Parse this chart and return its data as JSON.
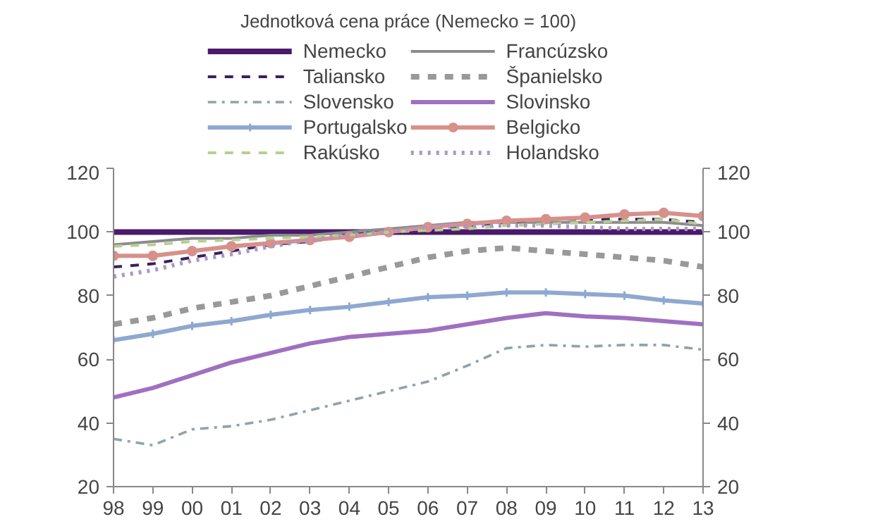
{
  "chart_data": {
    "type": "line",
    "title": "Jednotková cena práce (Nemecko = 100)",
    "x": [
      1998,
      1999,
      2000,
      2001,
      2002,
      2003,
      2004,
      2005,
      2006,
      2007,
      2008,
      2009,
      2010,
      2011,
      2012,
      2013
    ],
    "xlim": [
      1998,
      2013
    ],
    "xticks": [
      {
        "value": 1998,
        "label": "98"
      },
      {
        "value": 1999,
        "label": "99"
      },
      {
        "value": 2000,
        "label": "00"
      },
      {
        "value": 2001,
        "label": "01"
      },
      {
        "value": 2002,
        "label": "02"
      },
      {
        "value": 2003,
        "label": "03"
      },
      {
        "value": 2004,
        "label": "04"
      },
      {
        "value": 2005,
        "label": "05"
      },
      {
        "value": 2006,
        "label": "06"
      },
      {
        "value": 2007,
        "label": "07"
      },
      {
        "value": 2008,
        "label": "08"
      },
      {
        "value": 2009,
        "label": "09"
      },
      {
        "value": 2010,
        "label": "10"
      },
      {
        "value": 2011,
        "label": "11"
      },
      {
        "value": 2012,
        "label": "12"
      },
      {
        "value": 2013,
        "label": "13"
      }
    ],
    "ylim": [
      20,
      120
    ],
    "yticks": [
      20,
      40,
      60,
      80,
      100,
      120
    ],
    "y2lim": [
      20,
      120
    ],
    "y2ticks": [
      20,
      40,
      60,
      80,
      100,
      120
    ],
    "grid": false,
    "legend": "top",
    "series": [
      {
        "name": "Nemecko",
        "color": "#4b1a6b",
        "line_style": "solid",
        "marker": "none",
        "values": [
          100,
          100,
          100,
          100,
          100,
          100,
          100,
          100,
          100,
          100,
          100,
          100,
          100,
          100,
          100,
          100
        ]
      },
      {
        "name": "Francúzsko",
        "color": "#8c8c8c",
        "line_style": "solid",
        "marker": "none",
        "values": [
          96,
          97,
          98,
          98,
          99,
          99,
          100,
          101,
          102,
          103,
          103,
          103,
          103,
          103,
          103,
          102
        ]
      },
      {
        "name": "Taliansko",
        "color": "#3b1f5c",
        "line_style": "dashed",
        "marker": "none",
        "values": [
          89,
          90,
          92,
          94,
          96,
          97,
          99,
          100,
          101,
          102,
          103,
          104,
          104,
          104,
          104,
          103
        ]
      },
      {
        "name": "Španielsko",
        "color": "#999999",
        "line_style": "dashed",
        "marker": "none",
        "values": [
          71,
          73,
          76,
          78,
          80,
          83,
          86,
          89,
          92,
          94,
          95,
          94,
          93,
          92,
          91,
          89
        ]
      },
      {
        "name": "Slovensko",
        "color": "#8fa3a8",
        "line_style": "dashdot",
        "marker": "none",
        "values": [
          35,
          33,
          38,
          39,
          41,
          44,
          47,
          50,
          53,
          58,
          63.5,
          64.5,
          64,
          64.5,
          64.5,
          63
        ]
      },
      {
        "name": "Slovinsko",
        "color": "#a070c0",
        "line_style": "solid",
        "marker": "none",
        "values": [
          48,
          51,
          55,
          59,
          62,
          65,
          67,
          68,
          69,
          71,
          73,
          74.5,
          73.5,
          73,
          72,
          71
        ]
      },
      {
        "name": "Portugalsko",
        "color": "#8fa8d0",
        "line_style": "solid",
        "marker": "cross",
        "values": [
          66,
          68,
          70.5,
          72,
          74,
          75.5,
          76.5,
          78,
          79.5,
          80,
          81,
          81,
          80.5,
          80,
          78.5,
          77.5
        ]
      },
      {
        "name": "Belgicko",
        "color": "#d8908a",
        "line_style": "solid",
        "marker": "circle",
        "values": [
          92.5,
          92.5,
          94,
          95.5,
          96.5,
          97.5,
          98.5,
          100,
          101.5,
          102.5,
          103.5,
          104,
          104.5,
          105.5,
          106,
          105
        ]
      },
      {
        "name": "Rakúsko",
        "color": "#b5d08f",
        "line_style": "dashed",
        "marker": "none",
        "values": [
          95.5,
          96,
          97,
          97.5,
          98,
          98.5,
          99,
          100,
          100.5,
          101,
          102,
          102.5,
          103,
          103.5,
          104,
          102.5
        ]
      },
      {
        "name": "Holandsko",
        "color": "#a898c8",
        "line_style": "dotted",
        "marker": "none",
        "values": [
          86,
          88,
          91,
          93,
          95.5,
          97.5,
          99,
          100,
          101.5,
          102,
          102,
          102,
          101.5,
          101,
          101,
          101
        ]
      }
    ]
  }
}
